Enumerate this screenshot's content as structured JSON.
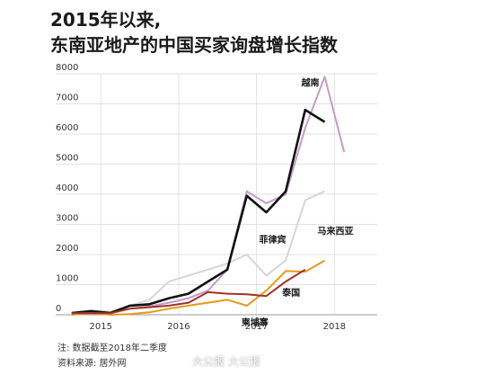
{
  "title_line1": "2015年以来,",
  "title_line2": "东南亚地产的中国买家询盘增长指数",
  "notes": {
    "note": "注: 数据截至2018年二季度",
    "source": "资料来源: 居外网"
  },
  "watermark": "大公报 大公报",
  "chart_data": {
    "type": "line",
    "ylim": [
      0,
      8000
    ],
    "y_ticks": [
      "0",
      "1000",
      "2000",
      "3000",
      "4000",
      "5000",
      "6000",
      "7000",
      "8000"
    ],
    "x_ticks": [
      "2015",
      "2016",
      "2017",
      "2018"
    ],
    "x_tick_values": [
      2015.0,
      2016.0,
      2017.0,
      2018.0
    ],
    "grid": true,
    "x": [
      2014.625,
      2014.875,
      2015.125,
      2015.375,
      2015.625,
      2015.875,
      2016.125,
      2016.375,
      2016.625,
      2016.875,
      2017.125,
      2017.375,
      2017.625,
      2017.875,
      2018.125,
      2018.375
    ],
    "series": [
      {
        "name": "越南",
        "color": "#c79ac7",
        "values": [
          50,
          100,
          60,
          200,
          280,
          400,
          550,
          800,
          1500,
          4100,
          3700,
          4000,
          6200,
          7900,
          5400,
          null
        ]
      },
      {
        "name": "马来西亚",
        "color": "#d6d6d6",
        "values": [
          50,
          150,
          100,
          300,
          500,
          1100,
          1300,
          1500,
          1700,
          2000,
          1300,
          1800,
          3800,
          4100,
          null,
          null
        ]
      },
      {
        "name": "菲律宾",
        "color": "#111111",
        "values": [
          60,
          120,
          60,
          300,
          350,
          550,
          700,
          1100,
          1500,
          3950,
          3400,
          4100,
          6800,
          6400,
          null,
          null
        ]
      },
      {
        "name": "泰国",
        "color": "#e59a1a",
        "values": [
          0,
          50,
          0,
          20,
          80,
          200,
          300,
          400,
          500,
          300,
          800,
          1450,
          1430,
          1800,
          null,
          null
        ]
      },
      {
        "name": "柬埔寨",
        "color": "#a0332c",
        "values": [
          50,
          60,
          50,
          200,
          250,
          300,
          400,
          750,
          700,
          680,
          620,
          1100,
          1500,
          null,
          null,
          null
        ]
      }
    ],
    "labels": [
      {
        "text": "越南",
        "series": "越南"
      },
      {
        "text": "菲律宾",
        "series": "菲律宾"
      },
      {
        "text": "马来西亚",
        "series": "马来西亚"
      },
      {
        "text": "泰国",
        "series": "柬埔寨"
      },
      {
        "text": "柬埔寨",
        "series": "泰国"
      }
    ]
  }
}
